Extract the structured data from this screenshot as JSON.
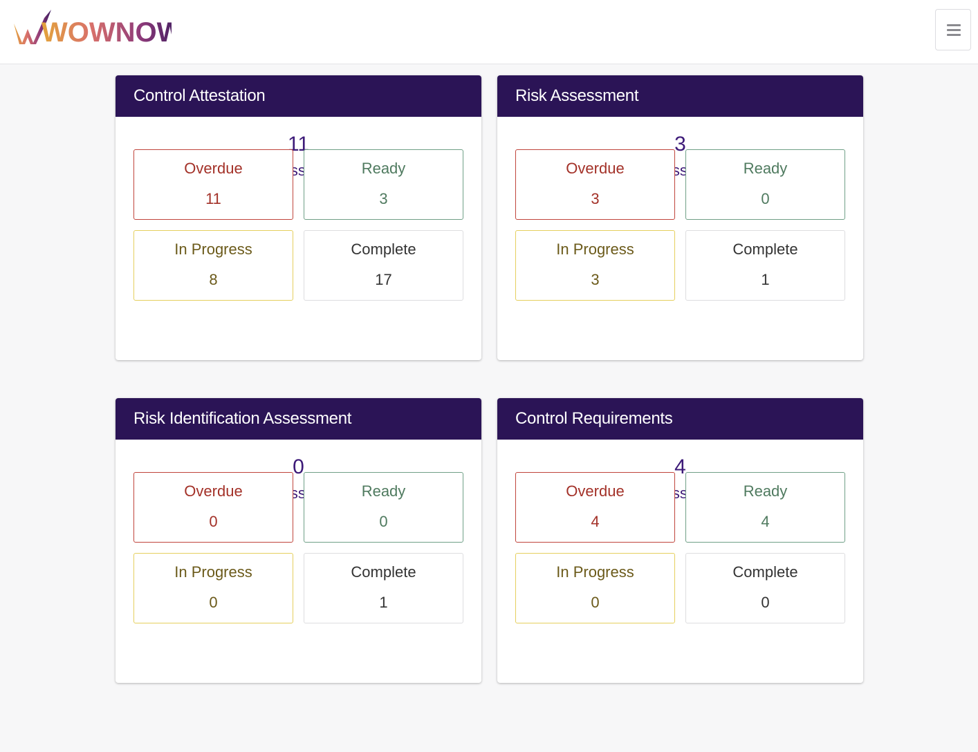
{
  "app": {
    "logo_text": "WOWNOW",
    "menu_icon": "hamburger-icon"
  },
  "colors": {
    "header_bg": "#2b1456",
    "accent": "#3d1a78",
    "overdue": "#a33128",
    "ready": "#4f7a5f",
    "in_progress": "#6b5a1a",
    "complete": "#333333"
  },
  "cards": [
    {
      "title": "Control Attestation",
      "total": "11",
      "link_label": "Take assessments",
      "link_icon": "edit-icon",
      "stats": {
        "overdue": {
          "label": "Overdue",
          "value": "11"
        },
        "ready": {
          "label": "Ready",
          "value": "3"
        },
        "in_progress": {
          "label": "In Progress",
          "value": "8"
        },
        "complete": {
          "label": "Complete",
          "value": "17"
        }
      }
    },
    {
      "title": "Risk Assessment",
      "total": "3",
      "link_label": "Take assessments",
      "link_icon": "edit-icon",
      "stats": {
        "overdue": {
          "label": "Overdue",
          "value": "3"
        },
        "ready": {
          "label": "Ready",
          "value": "0"
        },
        "in_progress": {
          "label": "In Progress",
          "value": "3"
        },
        "complete": {
          "label": "Complete",
          "value": "1"
        }
      }
    },
    {
      "title": "Risk Identification Assessment",
      "total": "0",
      "link_label": "Take assessments",
      "link_icon": "edit-icon",
      "stats": {
        "overdue": {
          "label": "Overdue",
          "value": "0"
        },
        "ready": {
          "label": "Ready",
          "value": "0"
        },
        "in_progress": {
          "label": "In Progress",
          "value": "0"
        },
        "complete": {
          "label": "Complete",
          "value": "1"
        }
      }
    },
    {
      "title": "Control Requirements",
      "total": "4",
      "link_label": "Take assessments",
      "link_icon": "edit-icon",
      "stats": {
        "overdue": {
          "label": "Overdue",
          "value": "4"
        },
        "ready": {
          "label": "Ready",
          "value": "4"
        },
        "in_progress": {
          "label": "In Progress",
          "value": "0"
        },
        "complete": {
          "label": "Complete",
          "value": "0"
        }
      }
    }
  ]
}
